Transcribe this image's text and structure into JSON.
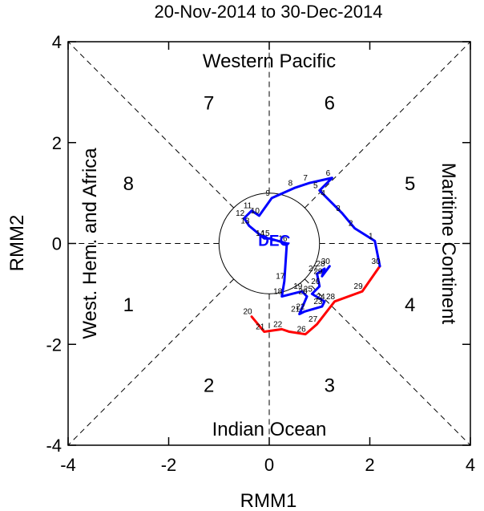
{
  "chart_data": {
    "type": "line",
    "title": "20-Nov-2014 to 30-Dec-2014",
    "xlabel": "RMM1",
    "ylabel": "RMM2",
    "xlim": [
      -4,
      4
    ],
    "ylim": [
      -4,
      4
    ],
    "x_ticks": [
      "-4",
      "-2",
      "0",
      "2",
      "4"
    ],
    "y_ticks": [
      "-4",
      "-2",
      "0",
      "2",
      "4"
    ],
    "grid": "dashed phase-space diagonals and axes",
    "unit_circle_radius": 1,
    "regions": {
      "top": "Western Pacific",
      "bottom": "Indian Ocean",
      "left": "West. Hem. and Africa",
      "right": "Maritime Continent"
    },
    "phases": [
      {
        "label": "1",
        "x": -2.8,
        "y": -1.2
      },
      {
        "label": "2",
        "x": -1.2,
        "y": -2.8
      },
      {
        "label": "3",
        "x": 1.2,
        "y": -2.8
      },
      {
        "label": "4",
        "x": 2.8,
        "y": -1.2
      },
      {
        "label": "5",
        "x": 2.8,
        "y": 1.2
      },
      {
        "label": "6",
        "x": 1.2,
        "y": 2.8
      },
      {
        "label": "7",
        "x": -1.2,
        "y": 2.8
      },
      {
        "label": "8",
        "x": -2.8,
        "y": 1.2
      }
    ],
    "series": [
      {
        "color": "#ff0000",
        "month": "NOV",
        "points": [
          {
            "day": "20",
            "x": -0.35,
            "y": -1.45
          },
          {
            "day": "21",
            "x": -0.1,
            "y": -1.75
          },
          {
            "day": "22",
            "x": 0.25,
            "y": -1.7
          },
          {
            "day": "",
            "x": 0.4,
            "y": -1.75
          },
          {
            "day": "26",
            "x": 0.72,
            "y": -1.8
          },
          {
            "day": "27",
            "x": 0.95,
            "y": -1.6
          },
          {
            "day": "28",
            "x": 1.3,
            "y": -1.15
          },
          {
            "day": "29",
            "x": 1.85,
            "y": -0.95
          },
          {
            "day": "30",
            "x": 2.2,
            "y": -0.45
          }
        ]
      },
      {
        "color": "#0000ff",
        "month": "DEC",
        "points": [
          {
            "day": "",
            "x": 2.2,
            "y": -0.45
          },
          {
            "day": "1",
            "x": 2.1,
            "y": 0.05
          },
          {
            "day": "2",
            "x": 1.7,
            "y": 0.3
          },
          {
            "day": "3",
            "x": 1.45,
            "y": 0.6
          },
          {
            "day": "4",
            "x": 1.15,
            "y": 0.9
          },
          {
            "day": "5",
            "x": 1.0,
            "y": 1.05
          },
          {
            "day": "6",
            "x": 1.25,
            "y": 1.3
          },
          {
            "day": "7",
            "x": 0.8,
            "y": 1.2
          },
          {
            "day": "8",
            "x": 0.5,
            "y": 1.1
          },
          {
            "day": "9",
            "x": 0.05,
            "y": 0.9
          },
          {
            "day": "10",
            "x": -0.2,
            "y": 0.55
          },
          {
            "day": "11",
            "x": -0.35,
            "y": 0.65
          },
          {
            "day": "12",
            "x": -0.5,
            "y": 0.5
          },
          {
            "day": "13",
            "x": -0.4,
            "y": 0.35
          },
          {
            "day": "14",
            "x": -0.1,
            "y": 0.1
          },
          {
            "day": "15",
            "x": 0.0,
            "y": 0.1
          },
          {
            "day": "16",
            "x": 0.35,
            "y": 0.0
          },
          {
            "day": "17",
            "x": 0.3,
            "y": -0.75
          },
          {
            "day": "18",
            "x": 0.25,
            "y": -1.05
          },
          {
            "day": "19",
            "x": 0.65,
            "y": -0.95
          },
          {
            "day": "20",
            "x": 0.75,
            "y": -1.05
          },
          {
            "day": "21",
            "x": 0.6,
            "y": -1.4
          },
          {
            "day": "22",
            "x": 0.7,
            "y": -1.35
          },
          {
            "day": "23",
            "x": 1.05,
            "y": -1.25
          },
          {
            "day": "24",
            "x": 1.1,
            "y": -1.15
          },
          {
            "day": "25",
            "x": 0.85,
            "y": -1.0
          },
          {
            "day": "26",
            "x": 1.0,
            "y": -0.85
          },
          {
            "day": "27",
            "x": 0.95,
            "y": -0.6
          },
          {
            "day": "28",
            "x": 1.1,
            "y": -0.5
          },
          {
            "day": "29",
            "x": 1.05,
            "y": -0.65
          },
          {
            "day": "30",
            "x": 1.2,
            "y": -0.45
          }
        ]
      }
    ],
    "annotations": [
      "DEC"
    ]
  }
}
